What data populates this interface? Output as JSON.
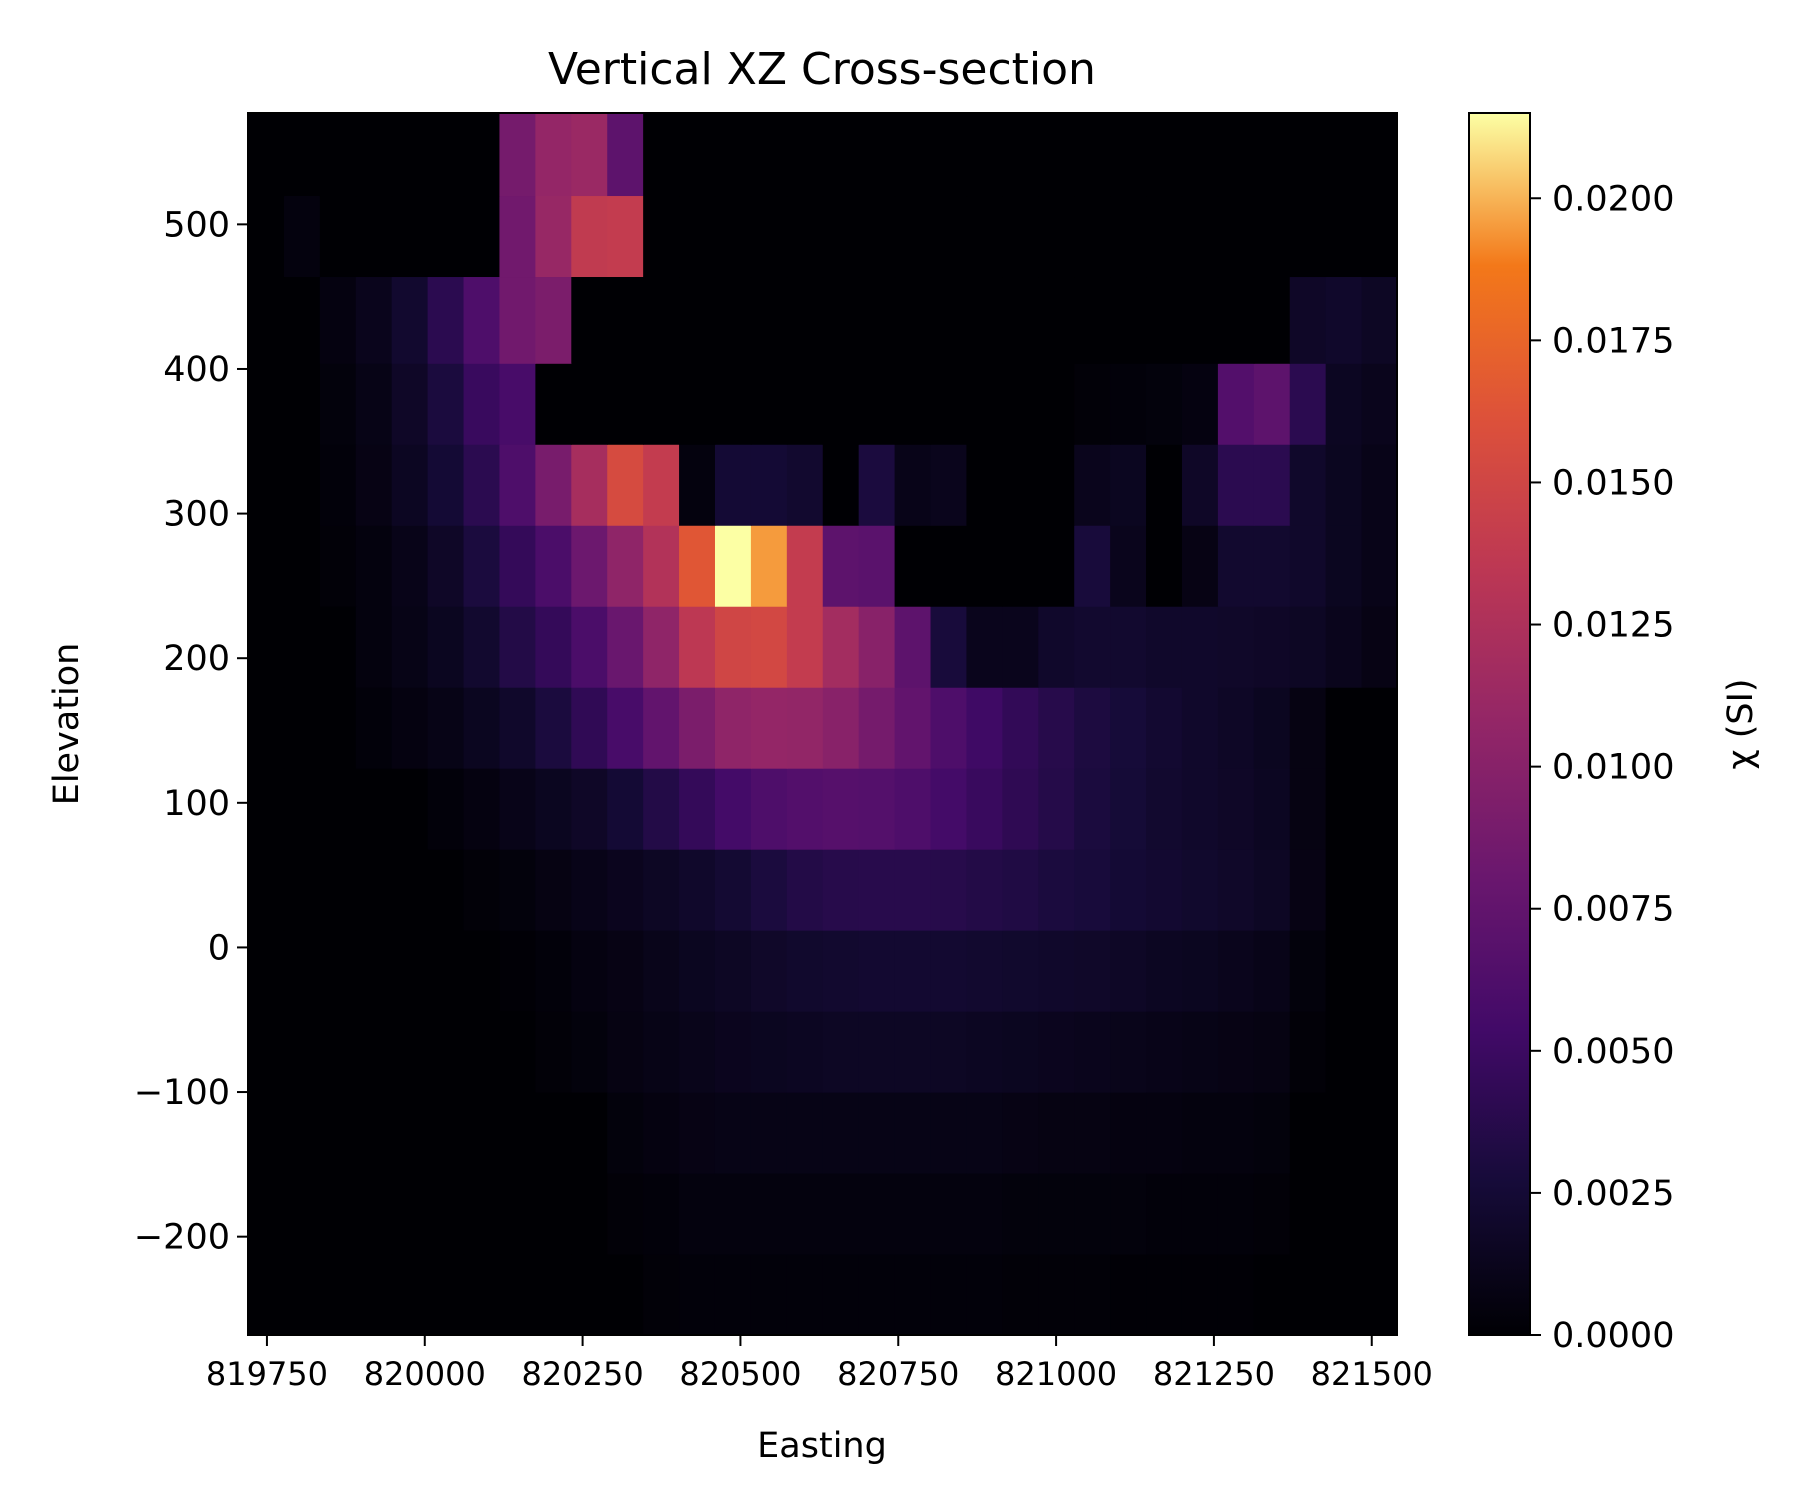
{
  "chart_data": {
    "type": "heatmap",
    "title": "Vertical XZ Cross-section",
    "xlabel": "Easting",
    "ylabel": "Elevation",
    "colorbar_label": "χ (SI)",
    "colormap": "inferno",
    "x_ticks": [
      819750,
      820000,
      820250,
      820500,
      820750,
      821000,
      821250,
      821500
    ],
    "y_ticks": [
      -200,
      -100,
      0,
      100,
      200,
      300,
      400,
      500
    ],
    "colorbar_ticks": [
      "0.0000",
      "0.0025",
      "0.0050",
      "0.0075",
      "0.0100",
      "0.0125",
      "0.0150",
      "0.0175",
      "0.0200"
    ],
    "xlim": [
      819720,
      821540
    ],
    "ylim": [
      -268,
      577
    ],
    "vmin": 0.0,
    "vmax": 0.0215,
    "cell_width": 56.9,
    "x_start": 819720,
    "cell_rows": [
      {
        "y0": -268,
        "y1": -212,
        "values": [
          0,
          0,
          0,
          0,
          0,
          0,
          0,
          0,
          0,
          0,
          0,
          0.0002,
          0.0003,
          0.0003,
          0.0003,
          0.0003,
          0.0003,
          0.0003,
          0.0003,
          0.0003,
          0.0003,
          0.0002,
          0.0002,
          0.0002,
          0.0001,
          0.0001,
          0.0001,
          0.0001,
          0,
          0,
          0,
          0
        ]
      },
      {
        "y0": -212,
        "y1": -156,
        "values": [
          0,
          0,
          0,
          0,
          0,
          0,
          0,
          0,
          0,
          0,
          0.0002,
          0.0003,
          0.0005,
          0.0005,
          0.0005,
          0.0005,
          0.0005,
          0.0005,
          0.0005,
          0.0005,
          0.0005,
          0.0004,
          0.0004,
          0.0004,
          0.0004,
          0.0003,
          0.0003,
          0.0003,
          0.0002,
          0,
          0,
          0
        ]
      },
      {
        "y0": -156,
        "y1": -100,
        "values": [
          0,
          0,
          0,
          0,
          0,
          0,
          0,
          0,
          0,
          0,
          0.0004,
          0.0006,
          0.0008,
          0.0009,
          0.0009,
          0.0009,
          0.0009,
          0.0009,
          0.0009,
          0.0009,
          0.0009,
          0.0008,
          0.0007,
          0.0007,
          0.0006,
          0.0006,
          0.0005,
          0.0005,
          0.0004,
          0,
          0,
          0
        ]
      },
      {
        "y0": -100,
        "y1": -44,
        "values": [
          0,
          0,
          0,
          0,
          0,
          0,
          0,
          0,
          0.0002,
          0.0004,
          0.0007,
          0.0009,
          0.0011,
          0.0013,
          0.0014,
          0.0015,
          0.0016,
          0.0016,
          0.0016,
          0.0016,
          0.0015,
          0.0014,
          0.0013,
          0.0012,
          0.0011,
          0.001,
          0.0009,
          0.0008,
          0.0007,
          0.0002,
          0,
          0
        ]
      },
      {
        "y0": -44,
        "y1": 12,
        "values": [
          0,
          0,
          0,
          0,
          0,
          0,
          0,
          0.0001,
          0.0003,
          0.0006,
          0.0008,
          0.0011,
          0.0014,
          0.0016,
          0.0019,
          0.0021,
          0.0022,
          0.0023,
          0.0023,
          0.0023,
          0.0022,
          0.0021,
          0.002,
          0.0019,
          0.0017,
          0.0015,
          0.0014,
          0.0012,
          0.001,
          0.0004,
          0,
          0
        ]
      },
      {
        "y0": 12,
        "y1": 68,
        "values": [
          0,
          0,
          0,
          0,
          0,
          0,
          0.0002,
          0.0004,
          0.0007,
          0.001,
          0.0013,
          0.0016,
          0.002,
          0.0024,
          0.003,
          0.0035,
          0.0037,
          0.0038,
          0.0038,
          0.0037,
          0.0035,
          0.0033,
          0.003,
          0.0028,
          0.0025,
          0.0023,
          0.0021,
          0.0019,
          0.0016,
          0.0008,
          0,
          0
        ]
      },
      {
        "y0": 68,
        "y1": 124,
        "values": [
          0,
          0,
          0,
          0,
          0,
          0.0003,
          0.0006,
          0.001,
          0.0014,
          0.0018,
          0.0025,
          0.0035,
          0.0045,
          0.0055,
          0.0062,
          0.0065,
          0.0067,
          0.0066,
          0.0062,
          0.0055,
          0.0048,
          0.0042,
          0.0036,
          0.003,
          0.0026,
          0.0022,
          0.002,
          0.0018,
          0.0015,
          0.0007,
          0,
          0
        ]
      },
      {
        "y0": 124,
        "y1": 180,
        "values": [
          0,
          0,
          0,
          0.0003,
          0.0006,
          0.0009,
          0.0014,
          0.002,
          0.003,
          0.0043,
          0.0058,
          0.0075,
          0.0092,
          0.0105,
          0.0108,
          0.0107,
          0.01,
          0.0088,
          0.0075,
          0.0062,
          0.0052,
          0.0044,
          0.0037,
          0.0031,
          0.0027,
          0.0023,
          0.002,
          0.0017,
          0.0014,
          0.0007,
          0,
          0
        ]
      },
      {
        "y0": 180,
        "y1": 236,
        "values": [
          0,
          0,
          0,
          0.0005,
          0.0009,
          0.0014,
          0.0022,
          0.0035,
          0.0045,
          0.006,
          0.008,
          0.0105,
          0.0135,
          0.015,
          0.0152,
          0.014,
          0.0118,
          0.01,
          0.0072,
          0.0028,
          0.0012,
          0.0012,
          0.002,
          0.0022,
          0.0022,
          0.002,
          0.002,
          0.0019,
          0.0018,
          0.0016,
          0.0012,
          0.0008
        ]
      },
      {
        "y0": 236,
        "y1": 292,
        "values": [
          0,
          0,
          0.0002,
          0.0005,
          0.001,
          0.0018,
          0.003,
          0.0045,
          0.006,
          0.0082,
          0.0105,
          0.0128,
          0.0165,
          0.0215,
          0.0195,
          0.014,
          0.0072,
          0.007,
          0,
          0,
          0,
          0,
          0,
          0.0028,
          0.0012,
          0,
          0.0008,
          0.0022,
          0.0022,
          0.002,
          0.0014,
          0.001
        ]
      },
      {
        "y0": 292,
        "y1": 348,
        "values": [
          0,
          0,
          0.0003,
          0.0008,
          0.0015,
          0.0025,
          0.004,
          0.0062,
          0.009,
          0.012,
          0.0155,
          0.014,
          0.0005,
          0.0025,
          0.0025,
          0.0022,
          0,
          0.003,
          0.001,
          0.0012,
          0,
          0,
          0,
          0.0012,
          0.0014,
          0,
          0.0018,
          0.004,
          0.004,
          0.002,
          0.0014,
          0.001
        ]
      },
      {
        "y0": 348,
        "y1": 404,
        "values": [
          0,
          0,
          0.0004,
          0.0009,
          0.0018,
          0.003,
          0.0048,
          0.0058,
          0,
          0,
          0,
          0,
          0,
          0,
          0,
          0,
          0,
          0,
          0,
          0,
          0,
          0,
          0,
          0.0002,
          0.0003,
          0.0004,
          0.0006,
          0.0065,
          0.0072,
          0.004,
          0.0015,
          0.0012
        ]
      },
      {
        "y0": 404,
        "y1": 464,
        "values": [
          0,
          0,
          0.0006,
          0.0012,
          0.0022,
          0.004,
          0.0062,
          0.0085,
          0.0092,
          0,
          0,
          0,
          0,
          0,
          0,
          0,
          0,
          0,
          0,
          0,
          0,
          0,
          0,
          0,
          0,
          0,
          0,
          0,
          0,
          0.0018,
          0.002,
          0.0016
        ]
      },
      {
        "y0": 464,
        "y1": 520,
        "values": [
          0,
          0.0005,
          0,
          0,
          0,
          0,
          0,
          0.0085,
          0.011,
          0.0138,
          0.014,
          0,
          0,
          0,
          0,
          0,
          0,
          0,
          0,
          0,
          0,
          0,
          0,
          0,
          0,
          0,
          0,
          0,
          0,
          0,
          0,
          0
        ]
      },
      {
        "y0": 520,
        "y1": 577,
        "values": [
          0,
          0,
          0,
          0,
          0,
          0,
          0,
          0.0088,
          0.0108,
          0.0112,
          0.0072,
          0,
          0,
          0,
          0,
          0,
          0,
          0,
          0,
          0,
          0,
          0,
          0,
          0,
          0,
          0,
          0,
          0,
          0,
          0,
          0,
          0
        ]
      }
    ]
  }
}
